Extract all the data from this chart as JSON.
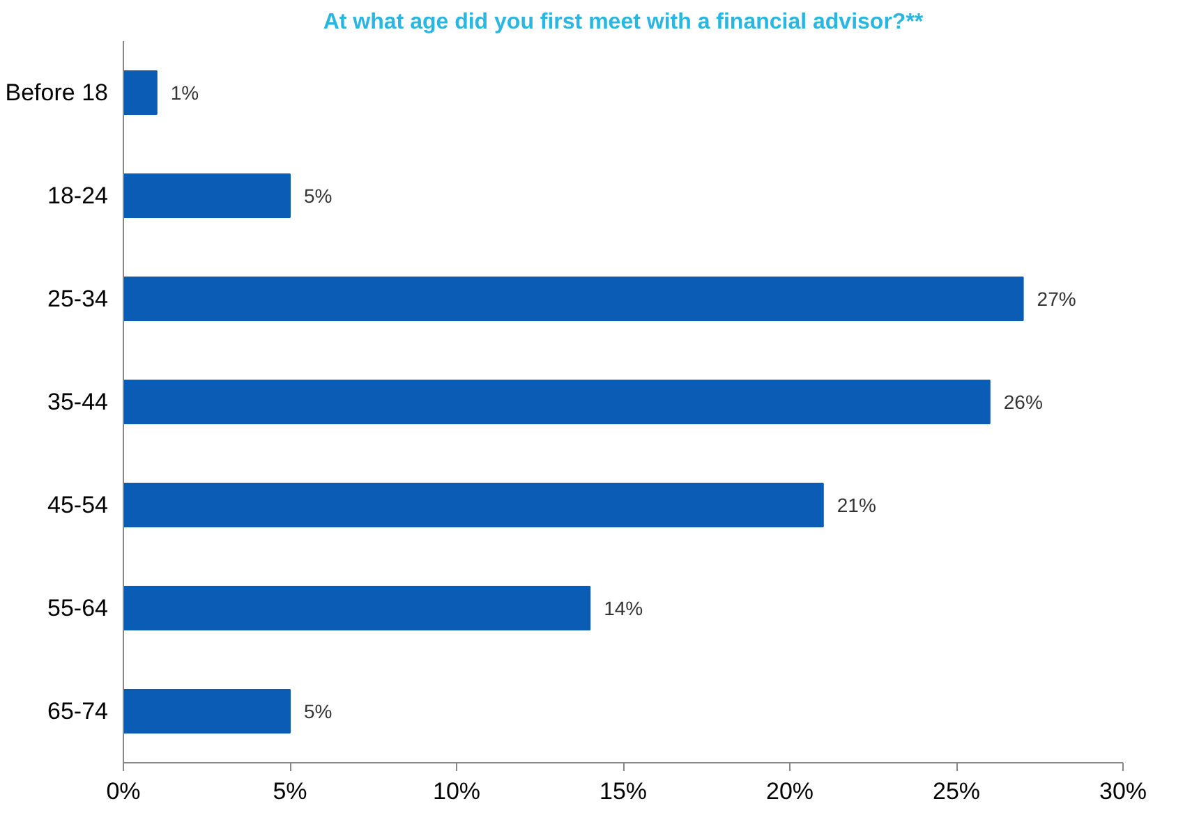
{
  "chart_data": {
    "type": "bar",
    "orientation": "horizontal",
    "title": "At what age did you first meet with a financial advisor?**",
    "categories": [
      "Before 18",
      "18-24",
      "25-34",
      "35-44",
      "45-54",
      "55-64",
      "65-74"
    ],
    "values": [
      1,
      5,
      27,
      26,
      21,
      14,
      5
    ],
    "value_labels": [
      "1%",
      "5%",
      "27%",
      "26%",
      "21%",
      "14%",
      "5%"
    ],
    "color": "#0a5cb5",
    "xlim": [
      0,
      30
    ],
    "xticks": [
      {
        "value": 0,
        "label": "0%"
      },
      {
        "value": 5,
        "label": "5%"
      },
      {
        "value": 10,
        "label": "10%"
      },
      {
        "value": 15,
        "label": "15%"
      },
      {
        "value": 20,
        "label": "20%"
      },
      {
        "value": 25,
        "label": "25%"
      },
      {
        "value": 30,
        "label": "30%"
      }
    ],
    "grid": false
  }
}
